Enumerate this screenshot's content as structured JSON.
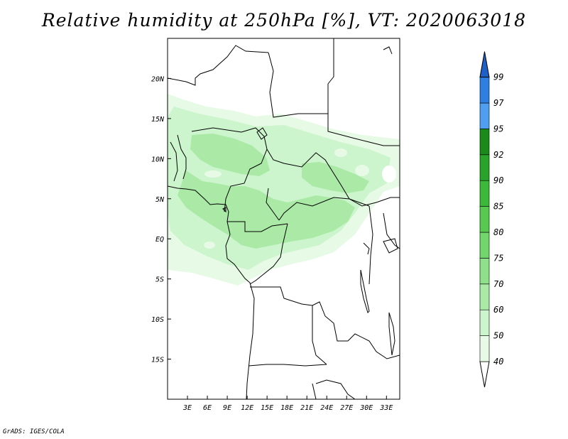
{
  "title": "Relative humidity at 250hPa [%], VT: 2020063018",
  "credit": "GrADS: IGES/COLA",
  "map": {
    "lat_range": [
      -20,
      25
    ],
    "lon_range": [
      0,
      35
    ],
    "lat_labels": [
      {
        "lat": 20,
        "label": "20N"
      },
      {
        "lat": 15,
        "label": "15N"
      },
      {
        "lat": 10,
        "label": "10N"
      },
      {
        "lat": 5,
        "label": "5N"
      },
      {
        "lat": 0,
        "label": "EQ"
      },
      {
        "lat": -5,
        "label": "5S"
      },
      {
        "lat": -10,
        "label": "10S"
      },
      {
        "lat": -15,
        "label": "15S"
      }
    ],
    "lon_labels": [
      {
        "lon": 3,
        "label": "3E"
      },
      {
        "lon": 6,
        "label": "6E"
      },
      {
        "lon": 9,
        "label": "9E"
      },
      {
        "lon": 12,
        "label": "12E"
      },
      {
        "lon": 15,
        "label": "15E"
      },
      {
        "lon": 18,
        "label": "18E"
      },
      {
        "lon": 21,
        "label": "21E"
      },
      {
        "lon": 24,
        "label": "24E"
      },
      {
        "lon": 27,
        "label": "27E"
      },
      {
        "lon": 30,
        "label": "30E"
      },
      {
        "lon": 33,
        "label": "33E"
      }
    ]
  },
  "colorbar": {
    "levels": [
      "40",
      "50",
      "60",
      "70",
      "75",
      "80",
      "85",
      "90",
      "92",
      "95",
      "97",
      "99"
    ],
    "colors": [
      "#ffffff",
      "#e6fae6",
      "#cdf5cd",
      "#aaeaa6",
      "#8fe08a",
      "#71d66b",
      "#57c950",
      "#3cb83a",
      "#2aa32a",
      "#1a8a1a",
      "#4f9ef0",
      "#2f7fe0",
      "#1f5fc8"
    ],
    "colors_meaning": "white below 40, then light-to-dark green 40-95, then blues 95-99 and above"
  }
}
